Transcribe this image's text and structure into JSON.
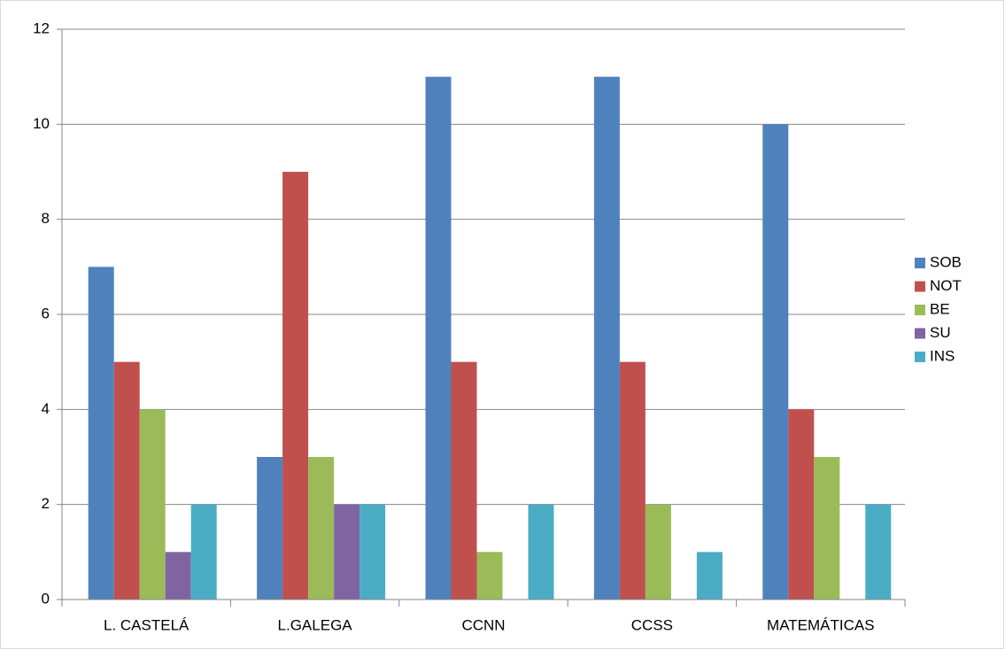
{
  "chart_data": {
    "type": "bar",
    "categories": [
      "L. CASTELÁ",
      "L.GALEGA",
      "CCNN",
      "CCSS",
      "MATEMÁTICAS"
    ],
    "series": [
      {
        "name": "SOB",
        "color": "#4f81bd",
        "values": [
          7,
          3,
          11,
          11,
          10
        ]
      },
      {
        "name": "NOT",
        "color": "#c0504d",
        "values": [
          5,
          9,
          5,
          5,
          4
        ]
      },
      {
        "name": "BE",
        "color": "#9bbb59",
        "values": [
          4,
          3,
          1,
          2,
          3
        ]
      },
      {
        "name": "SU",
        "color": "#8064a2",
        "values": [
          1,
          2,
          0,
          0,
          0
        ]
      },
      {
        "name": "INS",
        "color": "#4bacc6",
        "values": [
          2,
          2,
          2,
          1,
          2
        ]
      }
    ],
    "ylim": [
      0,
      12
    ],
    "yticks": [
      0,
      2,
      4,
      6,
      8,
      10,
      12
    ],
    "grid": true,
    "legend": "right"
  }
}
